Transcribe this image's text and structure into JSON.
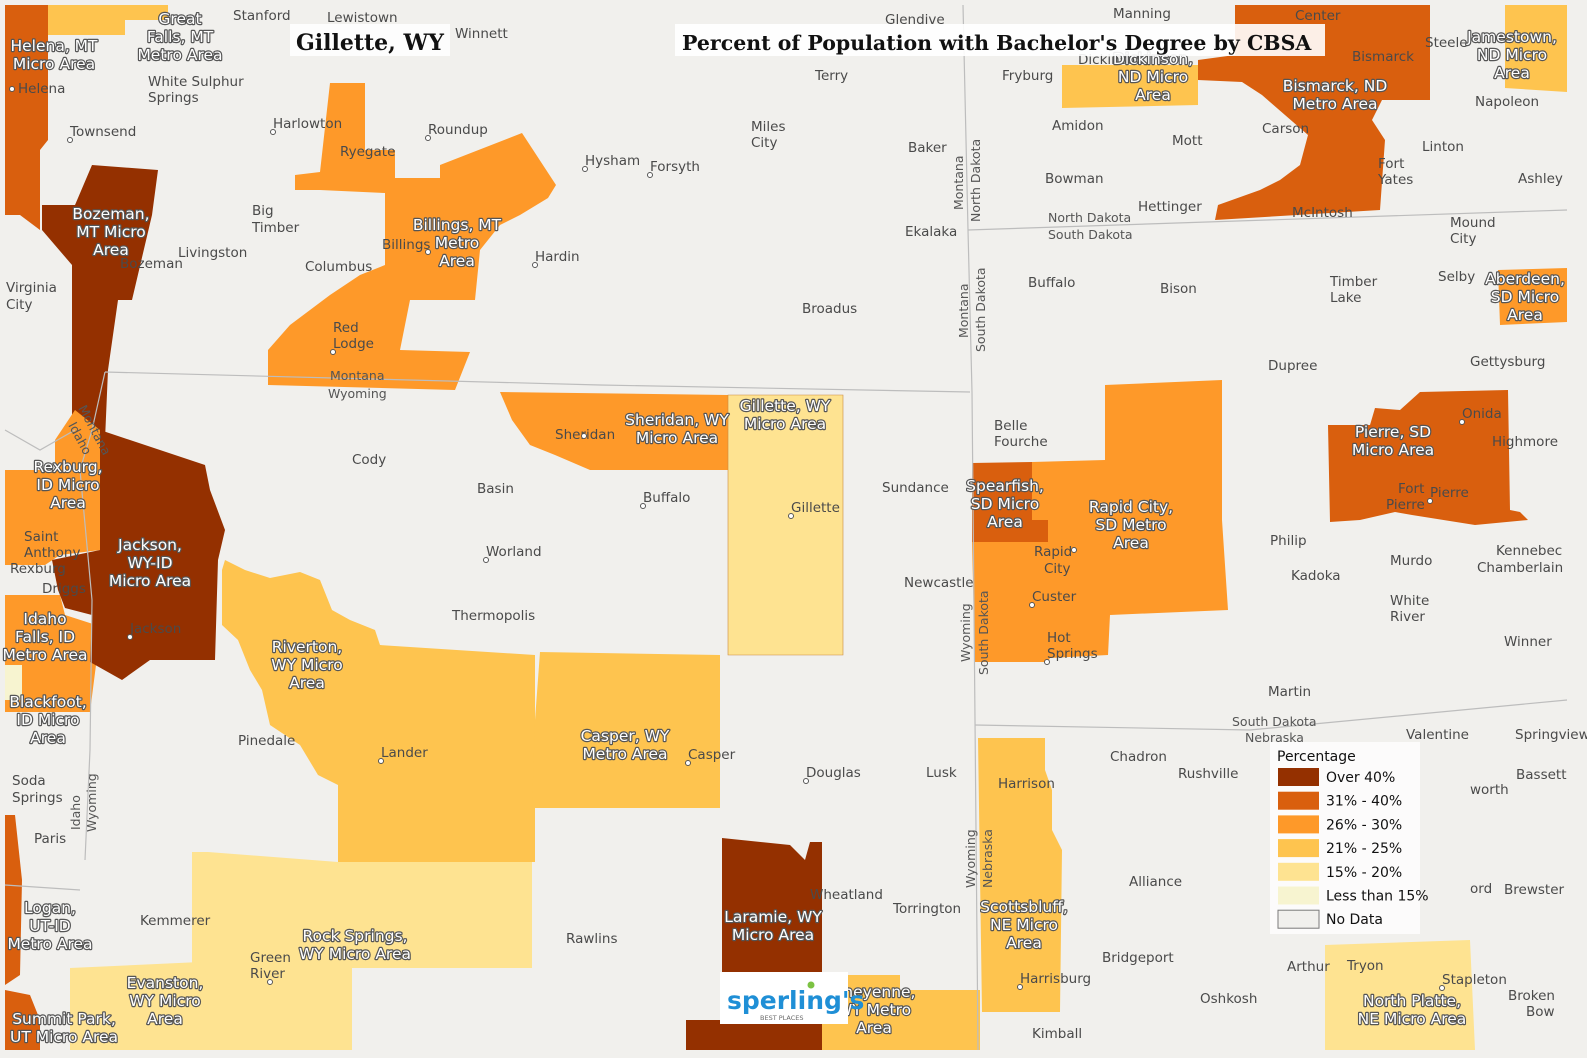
{
  "title_left": "Gillette, WY",
  "title_right": "Percent of Population with Bachelor's Degree by CBSA",
  "legend": {
    "title": "Percentage",
    "items": [
      {
        "label": "Over 40%",
        "color": "#943000"
      },
      {
        "label": "31% - 40%",
        "color": "#d95f0e"
      },
      {
        "label": "26% - 30%",
        "color": "#fe9929"
      },
      {
        "label": "21% - 25%",
        "color": "#fec44f"
      },
      {
        "label": "15% - 20%",
        "color": "#fee391"
      },
      {
        "label": "Less than 15%",
        "color": "#f7f4d0"
      },
      {
        "label": "No Data",
        "color": "#f1f0ed"
      }
    ]
  },
  "logo": {
    "name": "sperling's",
    "tagline": "BEST PLACES"
  },
  "areas": [
    {
      "lines": [
        "Helena, MT",
        "Micro Area"
      ],
      "class": "31% - 40%"
    },
    {
      "lines": [
        "Great",
        "Falls, MT",
        "Metro Area"
      ],
      "class": "21% - 25%"
    },
    {
      "lines": [
        "Bozeman,",
        "MT Micro",
        "Area"
      ],
      "class": "Over 40%"
    },
    {
      "lines": [
        "Billings, MT",
        "Metro",
        "Area"
      ],
      "class": "26% - 30%"
    },
    {
      "lines": [
        "Sheridan, WY",
        "Micro Area"
      ],
      "class": "26% - 30%"
    },
    {
      "lines": [
        "Gillette, WY",
        "Micro Area"
      ],
      "class": "15% - 20%"
    },
    {
      "lines": [
        "Rexburg,",
        "ID Micro",
        "Area"
      ],
      "class": "26% - 30%"
    },
    {
      "lines": [
        "Jackson,",
        "WY-ID",
        "Micro Area"
      ],
      "class": "Over 40%"
    },
    {
      "lines": [
        "Idaho",
        "Falls, ID",
        "Metro Area"
      ],
      "class": "26% - 30%"
    },
    {
      "lines": [
        "Blackfoot,",
        "ID Micro",
        "Area"
      ],
      "class": "Less than 15%"
    },
    {
      "lines": [
        "Riverton,",
        "WY Micro",
        "Area"
      ],
      "class": "21% - 25%"
    },
    {
      "lines": [
        "Casper, WY",
        "Metro Area"
      ],
      "class": "21% - 25%"
    },
    {
      "lines": [
        "Rock Springs,",
        "WY Micro Area"
      ],
      "class": "15% - 20%"
    },
    {
      "lines": [
        "Logan,",
        "UT-ID",
        "Metro Area"
      ],
      "class": "31% - 40%"
    },
    {
      "lines": [
        "Evanston,",
        "WY Micro",
        "Area"
      ],
      "class": "15% - 20%"
    },
    {
      "lines": [
        "Summit Park,",
        "UT Micro Area"
      ],
      "class": "31% - 40%"
    },
    {
      "lines": [
        "Laramie, WY",
        "Micro Area"
      ],
      "class": "Over 40%"
    },
    {
      "lines": [
        "Cheyenne,",
        "WY Metro",
        "Area"
      ],
      "class": "21% - 25%"
    },
    {
      "lines": [
        "Spearfish,",
        "SD Micro",
        "Area"
      ],
      "class": "31% - 40%"
    },
    {
      "lines": [
        "Rapid City,",
        "SD Metro",
        "Area"
      ],
      "class": "26% - 30%"
    },
    {
      "lines": [
        "Scottsbluff,",
        "NE Micro",
        "Area"
      ],
      "class": "21% - 25%"
    },
    {
      "lines": [
        "Dickinson,",
        "ND Micro",
        "Area"
      ],
      "class": "21% - 25%"
    },
    {
      "lines": [
        "Bismarck, ND",
        "Metro Area"
      ],
      "class": "31% - 40%"
    },
    {
      "lines": [
        "Jamestown,",
        "ND Micro",
        "Area"
      ],
      "class": "21% - 25%"
    },
    {
      "lines": [
        "Aberdeen,",
        "SD Micro",
        "Area"
      ],
      "class": "26% - 30%"
    },
    {
      "lines": [
        "Pierre, SD",
        "Micro Area"
      ],
      "class": "31% - 40%"
    },
    {
      "lines": [
        "North Platte,",
        "NE Micro Area"
      ],
      "class": "15% - 20%"
    }
  ],
  "states": [
    "Montana",
    "Wyoming",
    "Idaho",
    "Montana",
    "Idaho",
    "Wyoming",
    "Montana",
    "North Dakota",
    "North Dakota",
    "South Dakota",
    "Montana",
    "South Dakota",
    "Wyoming",
    "South Dakota",
    "Wyoming",
    "Nebraska",
    "South Dakota",
    "Nebraska"
  ],
  "cities": [
    "Stanford",
    "Lewistown",
    "Winnett",
    "Glendive",
    "Manning",
    "Center",
    "Steele",
    "Helena",
    "White Sulphur",
    "Springs",
    "Fryburg",
    "Dickinson",
    "Bismarck",
    "Napoleon",
    "Townsend",
    "Harlowton",
    "Roundup",
    "Terry",
    "Amidon",
    "Carson",
    "Miles",
    "City",
    "Baker",
    "Mott",
    "Linton",
    "Ryegate",
    "Hysham",
    "Forsyth",
    "Fort",
    "Yates",
    "Ashley",
    "Big",
    "Timber",
    "Bowman",
    "Hettinger",
    "McIntosh",
    "Mound",
    "City",
    "Livingston",
    "Bozeman",
    "Billings",
    "Ekalaka",
    "Columbus",
    "Hardin",
    "Virginia",
    "City",
    "Buffalo",
    "Bison",
    "Timber",
    "Lake",
    "Selby",
    "Broadus",
    "Red",
    "Lodge",
    "Dupree",
    "Gettysburg",
    "Onida",
    "Highmore",
    "Sheridan",
    "Belle",
    "Fourche",
    "Cody",
    "Basin",
    "Buffalo",
    "Sundance",
    "Gillette",
    "Fort",
    "Pierre",
    "Pierre",
    "Saint",
    "Anthony",
    "Rexburg",
    "Philip",
    "Worland",
    "Rapid",
    "City",
    "Kadoka",
    "Murdo",
    "Kennebec",
    "Chamberlain",
    "Driggs",
    "Newcastle",
    "Custer",
    "White",
    "River",
    "Thermopolis",
    "Jackson",
    "Winner",
    "Hot",
    "Springs",
    "Pinedale",
    "Martin",
    "Lander",
    "Casper",
    "Valentine",
    "Springview",
    "Douglas",
    "Lusk",
    "Chadron",
    "Rushville",
    "Harrison",
    "Soda",
    "Springs",
    "worth",
    "Bassett",
    "Paris",
    "Alliance",
    "Wheatland",
    "ord",
    "Brewster",
    "Kemmerer",
    "Torrington",
    "Rawlins",
    "Green",
    "River",
    "Bridgeport",
    "Harrisburg",
    "Arthur",
    "Tryon",
    "Stapleton",
    "Oshkosh",
    "Broken",
    "Bow",
    "Kimball"
  ]
}
